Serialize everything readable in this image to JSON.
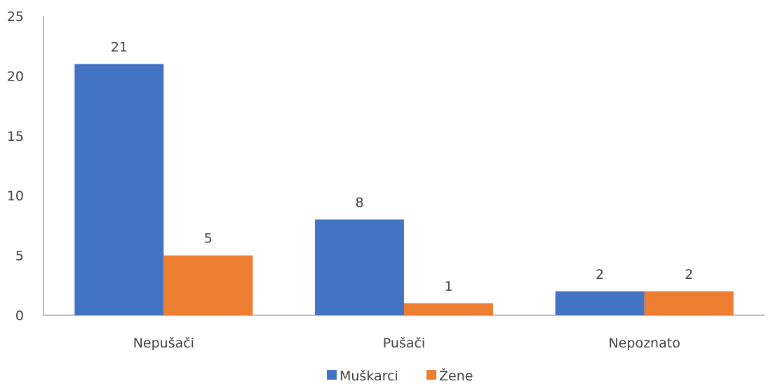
{
  "chart_data": {
    "type": "bar",
    "categories": [
      "Nepušači",
      "Pušači",
      "Nepoznato"
    ],
    "series": [
      {
        "name": "Muškarci",
        "values": [
          21,
          8,
          2
        ],
        "color": "#4472C4"
      },
      {
        "name": "Žene",
        "values": [
          5,
          1,
          2
        ],
        "color": "#ED7D31"
      }
    ],
    "ylim": [
      0,
      25
    ],
    "yticks": [
      0,
      5,
      10,
      15,
      20,
      25
    ],
    "grid": false,
    "data_labels": true,
    "legend_position": "bottom"
  }
}
